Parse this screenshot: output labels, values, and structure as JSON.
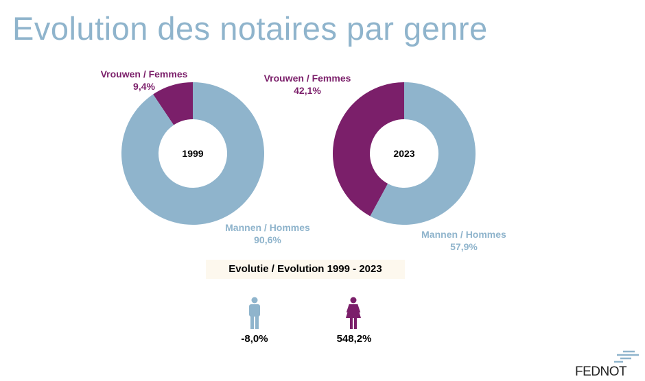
{
  "title": "Evolution des notaires par genre",
  "colors": {
    "women": "#7b1f6a",
    "men": "#8fb4cc"
  },
  "chart_data": [
    {
      "type": "pie",
      "variant": "donut",
      "center_label": "1999",
      "labels": [
        "Vrouwen / Femmes",
        "Mannen / Hommes"
      ],
      "values": [
        9.4,
        90.6
      ],
      "value_labels": [
        "9,4%",
        "90,6%"
      ]
    },
    {
      "type": "pie",
      "variant": "donut",
      "center_label": "2023",
      "labels": [
        "Vrouwen / Femmes",
        "Mannen / Hommes"
      ],
      "values": [
        42.1,
        57.9
      ],
      "value_labels": [
        "42,1%",
        "57,9%"
      ]
    }
  ],
  "evolution": {
    "title": "Evolutie / Evolution 1999 - 2023",
    "men": "-8,0%",
    "women": "548,2%"
  },
  "logo": "FEDNOT"
}
